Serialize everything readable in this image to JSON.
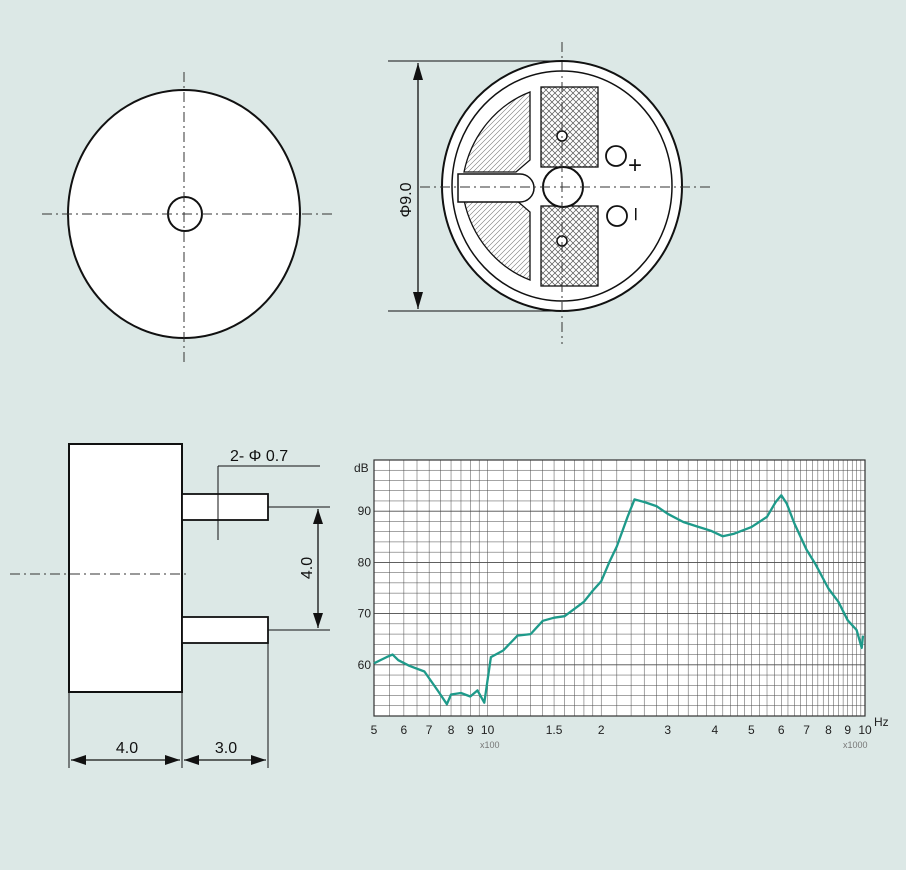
{
  "colors": {
    "background": "#dce8e6",
    "ink": "#111111",
    "grid": "#4a4a4a",
    "curve": "#1e9a8a",
    "subtext": "#777777"
  },
  "dimensions": {
    "diameter": "Φ9.0",
    "pin_spec": "2- Φ 0.7",
    "pin_spacing": "4.0",
    "body_length": "4.0",
    "pin_length": "3.0"
  },
  "terminals": {
    "plus": "+",
    "minus": "–"
  },
  "chart_data": {
    "type": "line",
    "scale": "log-x",
    "ylabel": "dB",
    "xlabel": "Hz",
    "xlim": [
      500,
      10000
    ],
    "ylim": [
      50,
      100
    ],
    "y_ticks": [
      "60",
      "70",
      "80",
      "90"
    ],
    "x_ticks": [
      {
        "label": "5",
        "value": 500
      },
      {
        "label": "6",
        "value": 600
      },
      {
        "label": "7",
        "value": 700
      },
      {
        "label": "8",
        "value": 800
      },
      {
        "label": "9",
        "value": 900
      },
      {
        "label": "10",
        "value": 1000
      },
      {
        "label": "1.5",
        "value": 1500
      },
      {
        "label": "2",
        "value": 2000
      },
      {
        "label": "3",
        "value": 3000
      },
      {
        "label": "4",
        "value": 4000
      },
      {
        "label": "5",
        "value": 5000
      },
      {
        "label": "6",
        "value": 6000
      },
      {
        "label": "7",
        "value": 7000
      },
      {
        "label": "8",
        "value": 8000
      },
      {
        "label": "9",
        "value": 9000
      },
      {
        "label": "10",
        "value": 10000
      }
    ],
    "multiplier_low": "x100",
    "multiplier_high": "x1000",
    "series": [
      {
        "x": [
          500,
          540,
          560,
          580,
          620,
          680,
          740,
          780,
          800,
          850,
          900,
          940,
          980,
          1020,
          1100,
          1200,
          1300,
          1400,
          1500,
          1600,
          1800,
          1900,
          2000,
          2100,
          2200,
          2350,
          2450,
          2600,
          2800,
          3000,
          3300,
          3600,
          3900,
          4200,
          4500,
          5000,
          5500,
          5800,
          6000,
          6200,
          6500,
          7000,
          7400,
          8000,
          8500,
          9000,
          9500,
          9800,
          10300
        ],
        "y": [
          60.3,
          61.5,
          62,
          60.9,
          59.8,
          58.7,
          54.8,
          52.3,
          54.2,
          54.5,
          53.8,
          55,
          52.6,
          61.5,
          62.8,
          65.7,
          66,
          68.6,
          69.2,
          69.5,
          72.3,
          74.5,
          76.3,
          80,
          83.1,
          88.9,
          92.3,
          91.8,
          91,
          89.5,
          87.9,
          87,
          86.2,
          85.1,
          85.6,
          86.9,
          88.9,
          91.8,
          93.1,
          91.5,
          87.6,
          82.5,
          79.6,
          74.9,
          72.3,
          68.7,
          66.8,
          63.3,
          65.7
        ]
      }
    ]
  }
}
